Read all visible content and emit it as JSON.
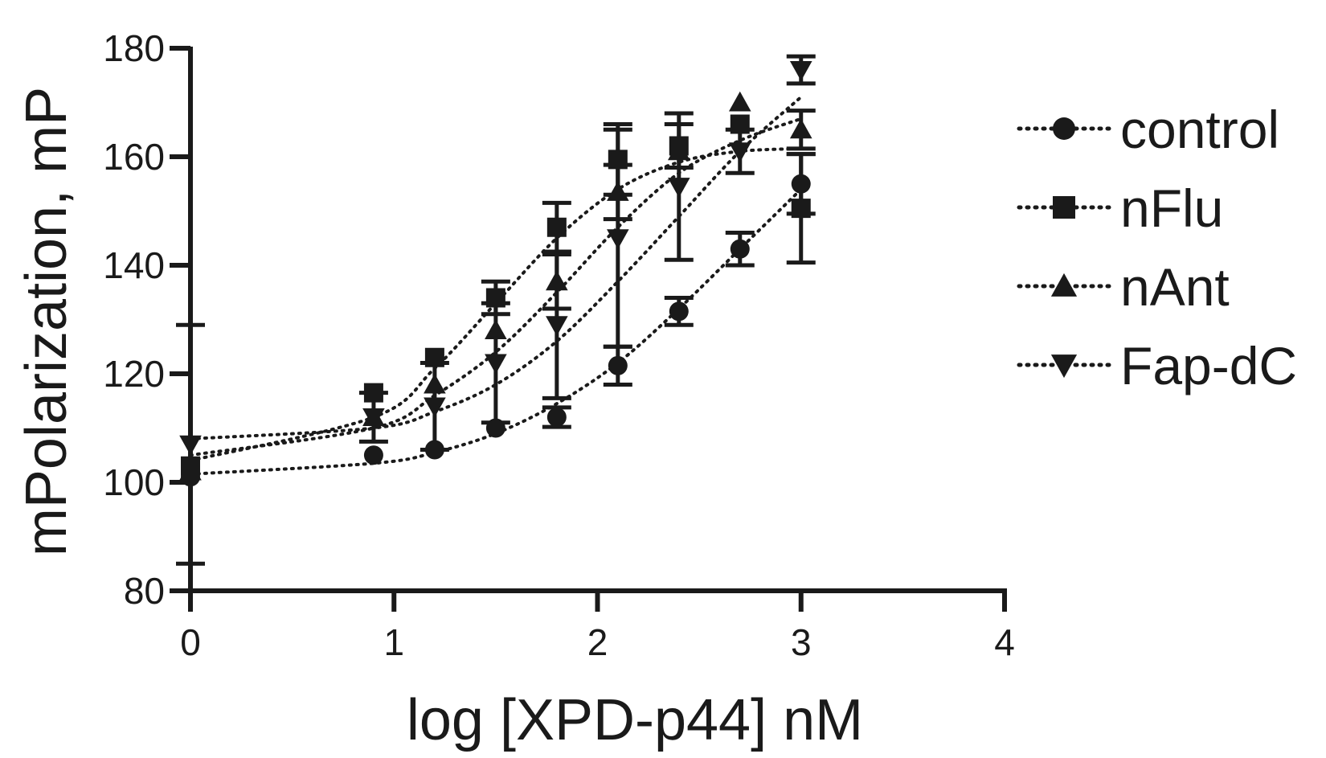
{
  "chart_data": {
    "type": "scatter",
    "xlabel": "log [XPD-p44] nM",
    "ylabel": "mPolarization, mP",
    "xlim": [
      0,
      4
    ],
    "ylim": [
      80,
      180
    ],
    "xticks": [
      0,
      1,
      2,
      3,
      4
    ],
    "yticks": [
      80,
      100,
      120,
      140,
      160,
      180
    ],
    "grid": false,
    "legend_position": "right",
    "fit_line": "dotted sigmoidal curve",
    "x": [
      0,
      0.9,
      1.2,
      1.5,
      1.8,
      2.1,
      2.4,
      2.7,
      3.0
    ],
    "series": [
      {
        "name": "control",
        "marker": "circle",
        "values": [
          101,
          105,
          106,
          110,
          112,
          121.5,
          131.5,
          143,
          155
        ],
        "errors": [
          0,
          0,
          0,
          0,
          1.8,
          3.5,
          2.5,
          3,
          5.5
        ],
        "fit": [
          101.5,
          103.5,
          105.5,
          109,
          114.5,
          122,
          132,
          143,
          154
        ]
      },
      {
        "name": "nFlu",
        "marker": "square",
        "values": [
          103,
          116.5,
          123,
          134,
          147,
          159.5,
          162,
          166,
          150.5
        ],
        "errors": [
          0,
          0,
          0,
          3,
          4.5,
          6.5,
          4,
          0,
          10
        ],
        "fit": [
          104,
          112,
          121,
          133,
          145,
          154,
          159,
          161,
          161.5
        ]
      },
      {
        "name": "nAnt",
        "marker": "triangle-up",
        "values": [
          102,
          112,
          118,
          128,
          137,
          153.5,
          161,
          170,
          165
        ],
        "errors": [
          0,
          0,
          0,
          0,
          5,
          5,
          0,
          0,
          3.5
        ],
        "fit": [
          105,
          110,
          116,
          124,
          135,
          147,
          157,
          163,
          167
        ]
      },
      {
        "name": "Fap-dC",
        "marker": "triangle-down",
        "values": [
          107,
          112,
          114,
          122,
          129,
          145,
          154.5,
          161,
          176
        ],
        "errors": [
          22,
          4.5,
          8,
          11,
          13.5,
          20,
          13.5,
          4,
          2.5
        ],
        "fit": [
          108,
          110,
          113,
          118,
          126,
          137,
          149,
          161,
          171
        ]
      }
    ]
  }
}
